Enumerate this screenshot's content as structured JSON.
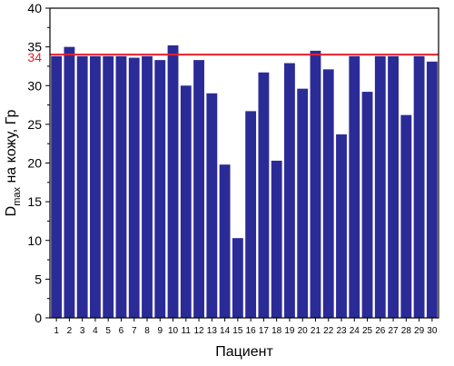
{
  "chart_data": {
    "type": "bar",
    "xlabel": "Пациент",
    "ylabel_main": "D",
    "ylabel_sub": "max",
    "ylabel_rest": " на кожу, Гр",
    "ylim": [
      0,
      40
    ],
    "y_ticks": [
      "0",
      "5",
      "10",
      "15",
      "20",
      "25",
      "30",
      "35",
      "40"
    ],
    "categories": [
      "1",
      "2",
      "3",
      "4",
      "5",
      "6",
      "7",
      "8",
      "9",
      "10",
      "11",
      "12",
      "13",
      "14",
      "15",
      "16",
      "17",
      "18",
      "19",
      "20",
      "21",
      "22",
      "23",
      "24",
      "25",
      "26",
      "27",
      "28",
      "29",
      "30"
    ],
    "values": [
      33.8,
      35.0,
      33.8,
      33.8,
      33.8,
      33.8,
      33.6,
      33.8,
      33.3,
      35.2,
      30.0,
      33.3,
      29.0,
      19.8,
      10.3,
      26.7,
      31.7,
      20.3,
      32.9,
      29.6,
      34.5,
      32.1,
      23.7,
      33.8,
      29.2,
      33.8,
      33.8,
      26.2,
      33.8,
      33.1
    ],
    "reference_line": {
      "value": 34,
      "label": "34",
      "color": "#e8202a"
    },
    "bar_color": "#2b2b97",
    "axis_color": "#000000",
    "grid": false
  }
}
